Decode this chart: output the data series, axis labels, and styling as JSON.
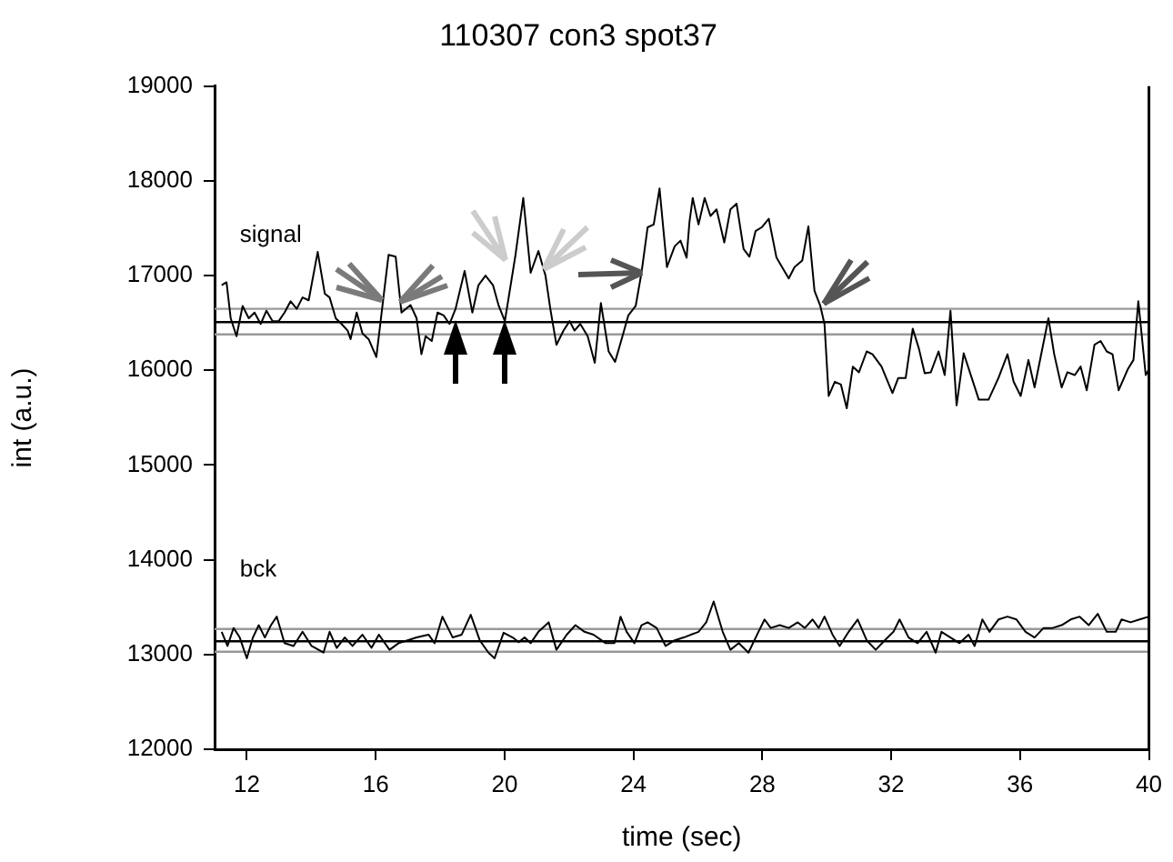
{
  "chart_data": {
    "type": "line",
    "title": "110307 con3 spot37",
    "xlabel": "time (sec)",
    "ylabel": "int (a.u.)",
    "xlim": [
      11,
      40
    ],
    "xticks": [
      12,
      16,
      20,
      24,
      28,
      32,
      36,
      40
    ],
    "ylim": [
      12000,
      19000
    ],
    "yticks": [
      12000,
      13000,
      14000,
      15000,
      16000,
      17000,
      18000,
      19000
    ],
    "grid": false,
    "legend": false,
    "marker": "none",
    "line_style": "solid",
    "series": [
      {
        "name": "signal",
        "color": "#000000",
        "x": [
          11.22,
          11.37,
          11.5,
          11.68,
          11.87,
          12.06,
          12.24,
          12.43,
          12.61,
          12.8,
          12.99,
          13.17,
          13.36,
          13.55,
          13.73,
          13.92,
          14.2,
          14.42,
          14.57,
          14.76,
          14.94,
          15.13,
          15.22,
          15.41,
          15.59,
          15.78,
          16.02,
          16.21,
          16.4,
          16.62,
          16.8,
          17.08,
          17.27,
          17.42,
          17.55,
          17.74,
          17.92,
          18.11,
          18.29,
          18.48,
          18.76,
          19.0,
          19.19,
          19.41,
          19.64,
          19.82,
          20.01,
          20.34,
          20.58,
          20.81,
          21.05,
          21.27,
          21.42,
          21.61,
          21.83,
          22.02,
          22.17,
          22.35,
          22.58,
          22.8,
          22.99,
          23.23,
          23.43,
          23.66,
          23.84,
          24.07,
          24.25,
          24.44,
          24.63,
          24.81,
          25.04,
          25.28,
          25.46,
          25.65,
          25.74,
          25.84,
          26.02,
          26.21,
          26.39,
          26.58,
          26.82,
          27.01,
          27.2,
          27.42,
          27.6,
          27.79,
          27.98,
          28.2,
          28.44,
          28.82,
          29.0,
          29.24,
          29.43,
          29.62,
          29.8,
          29.93,
          30.06,
          30.25,
          30.44,
          30.62,
          30.81,
          31.0,
          31.24,
          31.42,
          31.7,
          32.04,
          32.22,
          32.45,
          32.67,
          32.86,
          33.04,
          33.23,
          33.47,
          33.66,
          33.84,
          34.03,
          34.25,
          34.5,
          34.72,
          35.02,
          35.33,
          35.61,
          35.8,
          36.02,
          36.26,
          36.45,
          36.88,
          37.06,
          37.29,
          37.47,
          37.7,
          37.88,
          38.07,
          38.31,
          38.5,
          38.69,
          38.87,
          39.06,
          39.34,
          39.52,
          39.67,
          39.9,
          40.0
        ],
        "values": [
          16900,
          16930,
          16550,
          16360,
          16680,
          16550,
          16610,
          16490,
          16630,
          16520,
          16520,
          16610,
          16730,
          16650,
          16770,
          16740,
          17250,
          16810,
          16770,
          16550,
          16490,
          16420,
          16330,
          16610,
          16390,
          16330,
          16140,
          16680,
          17220,
          17200,
          16610,
          16690,
          16550,
          16170,
          16360,
          16310,
          16610,
          16580,
          16490,
          16650,
          17050,
          16610,
          16900,
          17000,
          16900,
          16680,
          16520,
          17220,
          17820,
          17030,
          17260,
          17000,
          16650,
          16270,
          16420,
          16520,
          16420,
          16490,
          16360,
          16080,
          16710,
          16200,
          16090,
          16360,
          16580,
          16680,
          17030,
          17510,
          17540,
          17920,
          17090,
          17310,
          17370,
          17190,
          17570,
          17820,
          17540,
          17820,
          17630,
          17700,
          17350,
          17700,
          17760,
          17280,
          17200,
          17470,
          17510,
          17600,
          17190,
          16970,
          17090,
          17160,
          17520,
          16840,
          16680,
          16490,
          15730,
          15880,
          15850,
          15600,
          16040,
          15980,
          16200,
          16170,
          16040,
          15760,
          15920,
          15920,
          16440,
          16230,
          15970,
          15980,
          16200,
          15950,
          16630,
          15630,
          16180,
          15920,
          15690,
          15690,
          15920,
          16170,
          15880,
          15730,
          16110,
          15820,
          16550,
          16170,
          15820,
          15980,
          15950,
          16040,
          15790,
          16270,
          16310,
          16200,
          16170,
          15790,
          16010,
          16110,
          16730,
          15950,
          16010
        ]
      },
      {
        "name": "bck",
        "color": "#000000",
        "x": [
          11.22,
          11.4,
          11.59,
          11.78,
          12.0,
          12.19,
          12.37,
          12.56,
          12.75,
          12.93,
          13.17,
          13.45,
          13.73,
          14.01,
          14.38,
          14.57,
          14.79,
          15.04,
          15.28,
          15.59,
          15.87,
          16.1,
          16.43,
          16.71,
          16.99,
          17.27,
          17.64,
          17.83,
          18.07,
          18.39,
          18.67,
          18.95,
          19.23,
          19.5,
          19.69,
          19.97,
          20.25,
          20.44,
          20.62,
          20.81,
          21.05,
          21.37,
          21.61,
          21.93,
          22.2,
          22.48,
          22.76,
          23.14,
          23.41,
          23.6,
          23.79,
          24.03,
          24.25,
          24.44,
          24.72,
          25.0,
          25.28,
          25.56,
          26.02,
          26.26,
          26.49,
          26.77,
          27.01,
          27.27,
          27.57,
          27.88,
          28.07,
          28.26,
          28.54,
          28.82,
          29.1,
          29.32,
          29.56,
          29.75,
          29.93,
          30.18,
          30.4,
          30.68,
          30.96,
          31.24,
          31.52,
          31.8,
          32.07,
          32.26,
          32.54,
          32.82,
          33.1,
          33.38,
          33.56,
          33.84,
          34.12,
          34.4,
          34.59,
          34.83,
          35.05,
          35.33,
          35.61,
          35.89,
          36.17,
          36.45,
          36.73,
          37.01,
          37.29,
          37.57,
          37.85,
          38.13,
          38.41,
          38.69,
          38.97,
          39.15,
          39.43,
          39.71,
          40.0
        ],
        "values": [
          13240,
          13090,
          13280,
          13180,
          12960,
          13180,
          13310,
          13180,
          13310,
          13400,
          13120,
          13090,
          13240,
          13090,
          13020,
          13240,
          13070,
          13180,
          13090,
          13210,
          13070,
          13210,
          13050,
          13120,
          13150,
          13180,
          13210,
          13120,
          13400,
          13180,
          13210,
          13420,
          13150,
          13020,
          12960,
          13230,
          13180,
          13130,
          13180,
          13120,
          13240,
          13340,
          13050,
          13210,
          13310,
          13240,
          13210,
          13120,
          13120,
          13400,
          13240,
          13120,
          13310,
          13340,
          13280,
          13090,
          13150,
          13180,
          13240,
          13340,
          13560,
          13240,
          13050,
          13120,
          13020,
          13240,
          13370,
          13280,
          13310,
          13280,
          13340,
          13280,
          13370,
          13280,
          13400,
          13210,
          13090,
          13240,
          13370,
          13150,
          13050,
          13150,
          13240,
          13370,
          13180,
          13120,
          13240,
          13020,
          13240,
          13180,
          13120,
          13210,
          13090,
          13370,
          13240,
          13370,
          13400,
          13370,
          13240,
          13180,
          13280,
          13280,
          13310,
          13370,
          13400,
          13310,
          13430,
          13240,
          13240,
          13370,
          13340,
          13370,
          13400
        ]
      }
    ],
    "ref_lines": [
      {
        "axis": "y",
        "value": 16650,
        "color": "#999999"
      },
      {
        "axis": "y",
        "value": 16510,
        "color": "#000000"
      },
      {
        "axis": "y",
        "value": 16380,
        "color": "#999999"
      },
      {
        "axis": "y",
        "value": 13270,
        "color": "#999999"
      },
      {
        "axis": "y",
        "value": 13140,
        "color": "#000000"
      },
      {
        "axis": "y",
        "value": 13030,
        "color": "#999999"
      }
    ]
  }
}
